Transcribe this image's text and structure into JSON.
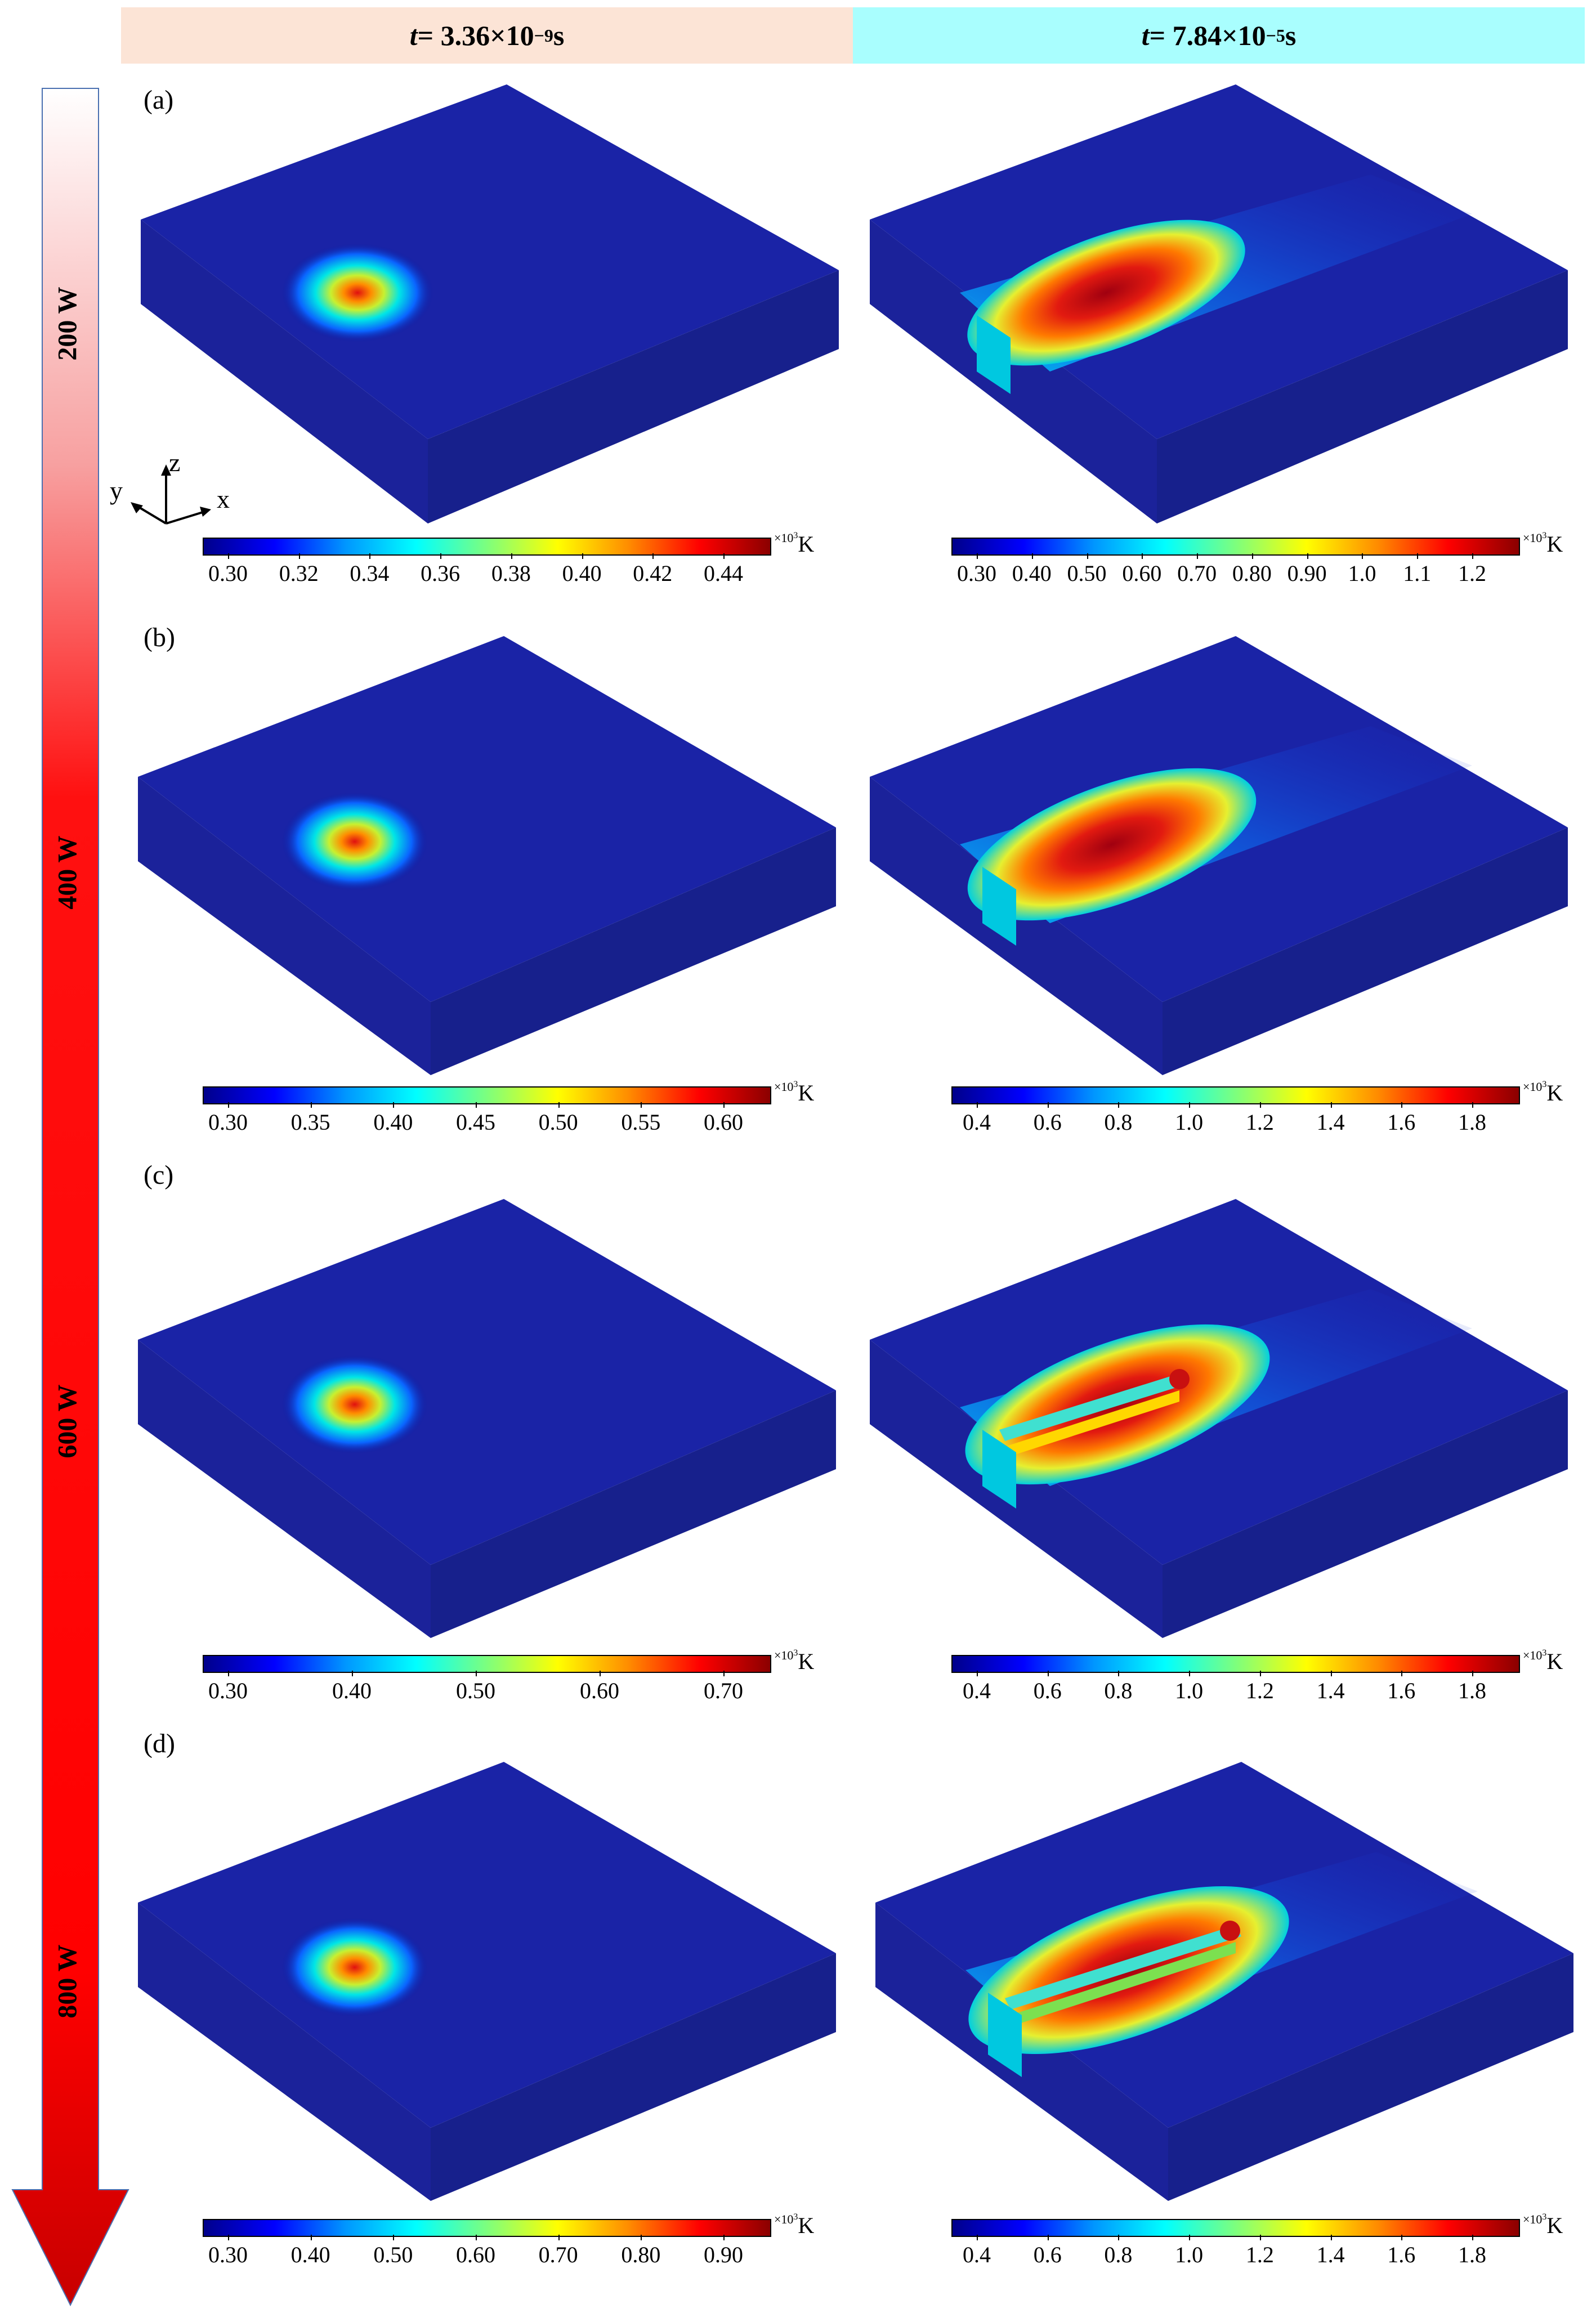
{
  "header": {
    "left": {
      "var": "t",
      "eq": " = 3.36×10",
      "exp": "−9",
      "unit": " s"
    },
    "right": {
      "var": "t",
      "eq": " = 7.84×10",
      "exp": "−5",
      "unit": " s"
    }
  },
  "axes": {
    "x": "x",
    "y": "y",
    "z": "z"
  },
  "colormap": [
    "#00008b",
    "#0000ff",
    "#0096ff",
    "#00ffff",
    "#7dff7d",
    "#ffff00",
    "#ff8c00",
    "#ff0000",
    "#8b0000"
  ],
  "colorbar_unit": {
    "mult": "×10",
    "exp": "3",
    "unit": "K"
  },
  "rows": [
    {
      "power": "200 W",
      "label": "(a)",
      "left_ticks": [
        "0.30",
        "0.32",
        "0.34",
        "0.36",
        "0.38",
        "0.40",
        "0.42",
        "0.44"
      ],
      "right_ticks": [
        "0.30",
        "0.40",
        "0.50",
        "0.60",
        "0.70",
        "0.80",
        "0.90",
        "1.0",
        "1.1",
        "1.2"
      ]
    },
    {
      "power": "400 W",
      "label": "(b)",
      "left_ticks": [
        "0.30",
        "0.35",
        "0.40",
        "0.45",
        "0.50",
        "0.55",
        "0.60"
      ],
      "right_ticks": [
        "0.4",
        "0.6",
        "0.8",
        "1.0",
        "1.2",
        "1.4",
        "1.6",
        "1.8"
      ]
    },
    {
      "power": "600 W",
      "label": "(c)",
      "left_ticks": [
        "0.30",
        "0.40",
        "0.50",
        "0.60",
        "0.70"
      ],
      "right_ticks": [
        "0.4",
        "0.6",
        "0.8",
        "1.0",
        "1.2",
        "1.4",
        "1.6",
        "1.8"
      ]
    },
    {
      "power": "800 W",
      "label": "(d)",
      "left_ticks": [
        "0.30",
        "0.40",
        "0.50",
        "0.60",
        "0.70",
        "0.80",
        "0.90"
      ],
      "right_ticks": [
        "0.4",
        "0.6",
        "0.8",
        "1.0",
        "1.2",
        "1.4",
        "1.6",
        "1.8"
      ]
    }
  ]
}
